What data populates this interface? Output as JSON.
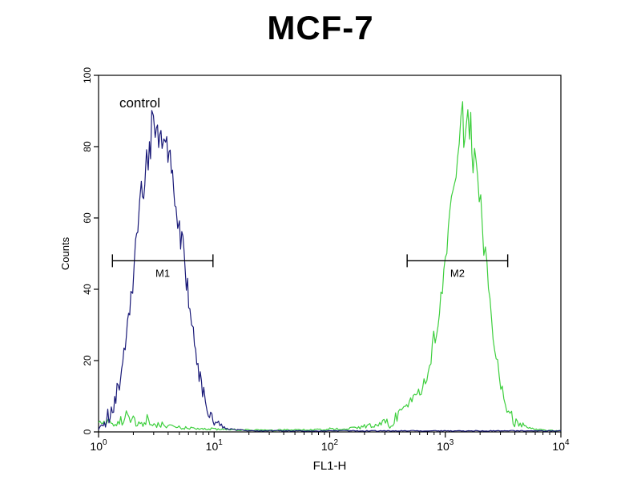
{
  "title": "MCF-7",
  "colors": {
    "control_curve": "#1a1a78",
    "stained_curve": "#3ecf3e",
    "axis": "#000000",
    "background": "#ffffff"
  },
  "chart_data": {
    "type": "line",
    "subtype": "flow-cytometry-histogram",
    "title": "MCF-7",
    "xlabel": "FL1-H",
    "ylabel": "Counts",
    "x_scale": "log10",
    "x_decades": [
      0,
      4
    ],
    "x_tick_exponents": [
      0,
      1,
      2,
      3,
      4
    ],
    "ylim": [
      0,
      100
    ],
    "y_ticks": [
      0,
      20,
      40,
      60,
      80,
      100
    ],
    "grid": false,
    "legend": false,
    "annotations": [
      {
        "text": "control",
        "log_x": 0.18,
        "counts": 91
      }
    ],
    "gates": [
      {
        "label": "M1",
        "log_x_start": 0.12,
        "log_x_end": 0.99,
        "counts": 48
      },
      {
        "label": "M2",
        "log_x_start": 2.67,
        "log_x_end": 3.54,
        "counts": 48
      }
    ],
    "series": [
      {
        "name": "",
        "data_name": "stained-curve",
        "color": "#3ecf3e",
        "points": [
          [
            0.0,
            2
          ],
          [
            0.06,
            3
          ],
          [
            0.12,
            2
          ],
          [
            0.18,
            3
          ],
          [
            0.24,
            4
          ],
          [
            0.3,
            3
          ],
          [
            0.36,
            2
          ],
          [
            0.42,
            3
          ],
          [
            0.48,
            2
          ],
          [
            0.55,
            2
          ],
          [
            0.65,
            1.5
          ],
          [
            0.8,
            1
          ],
          [
            1.0,
            0.8
          ],
          [
            1.2,
            0.6
          ],
          [
            1.5,
            0.5
          ],
          [
            1.8,
            0.6
          ],
          [
            2.0,
            0.8
          ],
          [
            2.15,
            1
          ],
          [
            2.3,
            1.5
          ],
          [
            2.42,
            2
          ],
          [
            2.52,
            3
          ],
          [
            2.62,
            5
          ],
          [
            2.7,
            8
          ],
          [
            2.78,
            12
          ],
          [
            2.84,
            17
          ],
          [
            2.9,
            25
          ],
          [
            2.95,
            34
          ],
          [
            3.0,
            46
          ],
          [
            3.04,
            57
          ],
          [
            3.08,
            68
          ],
          [
            3.12,
            78
          ],
          [
            3.15,
            87
          ],
          [
            3.18,
            83
          ],
          [
            3.21,
            85
          ],
          [
            3.24,
            79
          ],
          [
            3.28,
            70
          ],
          [
            3.32,
            58
          ],
          [
            3.36,
            45
          ],
          [
            3.4,
            32
          ],
          [
            3.44,
            21
          ],
          [
            3.48,
            13
          ],
          [
            3.52,
            8
          ],
          [
            3.56,
            5
          ],
          [
            3.6,
            3
          ],
          [
            3.66,
            2
          ],
          [
            3.72,
            1
          ],
          [
            3.8,
            0.6
          ],
          [
            3.9,
            0.4
          ],
          [
            4.0,
            0.3
          ]
        ]
      },
      {
        "name": "control",
        "data_name": "control-curve",
        "color": "#1a1a78",
        "points": [
          [
            0.0,
            1
          ],
          [
            0.04,
            2
          ],
          [
            0.07,
            4
          ],
          [
            0.1,
            5
          ],
          [
            0.13,
            8
          ],
          [
            0.16,
            11
          ],
          [
            0.19,
            15
          ],
          [
            0.22,
            21
          ],
          [
            0.25,
            28
          ],
          [
            0.28,
            37
          ],
          [
            0.31,
            47
          ],
          [
            0.34,
            57
          ],
          [
            0.37,
            66
          ],
          [
            0.4,
            73
          ],
          [
            0.43,
            79
          ],
          [
            0.46,
            84
          ],
          [
            0.49,
            88
          ],
          [
            0.52,
            85
          ],
          [
            0.55,
            83
          ],
          [
            0.58,
            84
          ],
          [
            0.61,
            79
          ],
          [
            0.64,
            73
          ],
          [
            0.67,
            66
          ],
          [
            0.7,
            58
          ],
          [
            0.73,
            50
          ],
          [
            0.76,
            42
          ],
          [
            0.79,
            34
          ],
          [
            0.82,
            27
          ],
          [
            0.85,
            21
          ],
          [
            0.88,
            15
          ],
          [
            0.91,
            11
          ],
          [
            0.94,
            7
          ],
          [
            0.97,
            5
          ],
          [
            1.0,
            3
          ],
          [
            1.05,
            2
          ],
          [
            1.1,
            1
          ],
          [
            1.18,
            0.6
          ],
          [
            1.3,
            0.3
          ],
          [
            1.6,
            0.3
          ],
          [
            2.0,
            0.3
          ],
          [
            2.5,
            0.3
          ],
          [
            3.0,
            0.3
          ],
          [
            3.5,
            0.3
          ],
          [
            4.0,
            0.3
          ]
        ]
      }
    ]
  }
}
